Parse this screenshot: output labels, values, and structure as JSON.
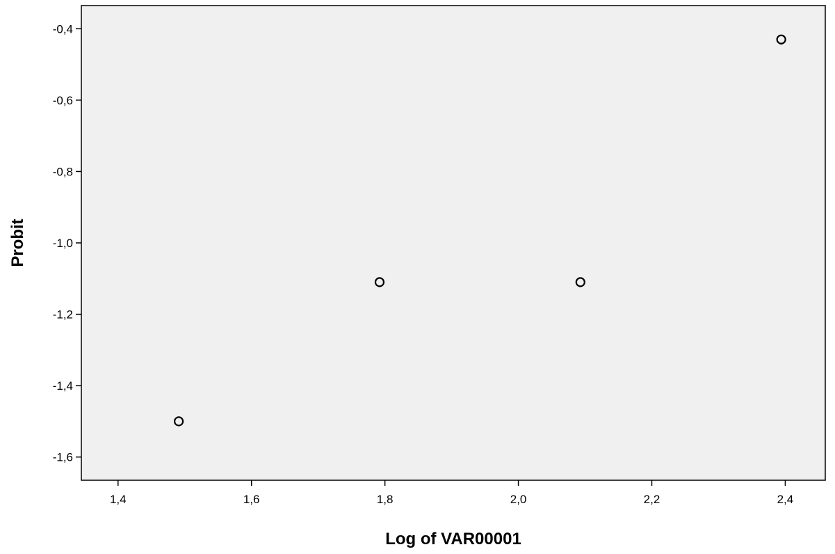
{
  "chart_data": {
    "type": "scatter",
    "title": "",
    "xlabel": "Log of VAR00001",
    "ylabel": "Probit",
    "xlim": [
      1.345,
      2.46
    ],
    "ylim": [
      -1.665,
      -0.335
    ],
    "x_ticks": [
      1.4,
      1.6,
      1.8,
      2.0,
      2.2,
      2.4
    ],
    "x_tick_labels": [
      "1,4",
      "1,6",
      "1,8",
      "2,0",
      "2,2",
      "2,4"
    ],
    "y_ticks": [
      -0.4,
      -0.6,
      -0.8,
      -1.0,
      -1.2,
      -1.4,
      -1.6
    ],
    "y_tick_labels": [
      "-0,4",
      "-0,6",
      "-0,8",
      "-1,0",
      "-1,2",
      "-1,4",
      "-1,6"
    ],
    "grid": false,
    "points": [
      {
        "x": 1.491,
        "y": -1.5
      },
      {
        "x": 1.792,
        "y": -1.11
      },
      {
        "x": 2.093,
        "y": -1.11
      },
      {
        "x": 2.394,
        "y": -0.43
      }
    ],
    "colors": {
      "plot_background": "#f0f0f0",
      "marker_stroke": "#000000",
      "axis": "#000000"
    }
  }
}
